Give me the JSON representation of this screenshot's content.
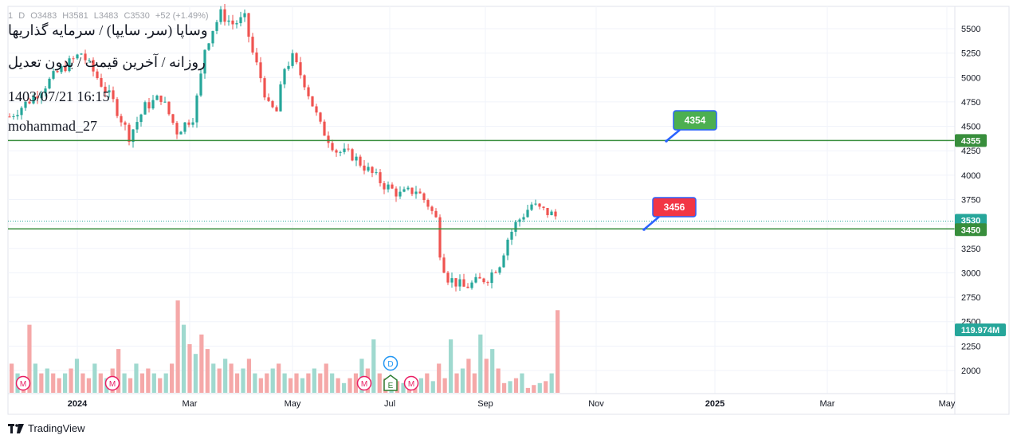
{
  "header": {
    "ohlc_labels": [
      "1",
      "D",
      "O3483",
      "H3581",
      "L3483",
      "C3530",
      "+52 (+1.49%)"
    ],
    "title": "وساپا (سر. سایپا) / سرمایه گذاریها",
    "subtitle": "روزانه / آخرین قیمت / بدون تعدیل",
    "datetime": "1403/07/21 16:15",
    "author": "mohammad_27"
  },
  "footer": {
    "brand": "TradingView"
  },
  "colors": {
    "up": "#26a69a",
    "down": "#ef5350",
    "vol_up": "#9fd9cf",
    "vol_down": "#f5a8a8",
    "line": "#388e3c",
    "label_green": "#4caf50",
    "label_red": "#f23645",
    "axis_text": "#131722",
    "grid": "#f0f3fa"
  },
  "chart_data": {
    "type": "candlestick",
    "x_ticks": [
      "2024",
      "Mar",
      "May",
      "Jul",
      "Sep",
      "Nov",
      "2025",
      "Mar",
      "May"
    ],
    "y_ticks": [
      2000,
      2250,
      2500,
      2750,
      3000,
      3250,
      3500,
      3750,
      4000,
      4250,
      4500,
      4750,
      5000,
      5250,
      5500
    ],
    "ylim": [
      1780,
      5720
    ],
    "price_badges": [
      {
        "value": "4355",
        "kind": "line"
      },
      {
        "value": "3530",
        "kind": "last"
      },
      {
        "value": "3450",
        "kind": "line"
      },
      {
        "value": "119.974M",
        "kind": "volume"
      }
    ],
    "horizontal_lines": [
      4355,
      3450
    ],
    "callouts": [
      {
        "label": "4354",
        "color": "green",
        "anchor_price": 4354
      },
      {
        "label": "3456",
        "color": "red",
        "anchor_price": 3456
      }
    ],
    "event_markers": [
      {
        "label": "M",
        "type": "dividend"
      },
      {
        "label": "M",
        "type": "dividend"
      },
      {
        "label": "M",
        "type": "dividend"
      },
      {
        "label": "E",
        "type": "earnings"
      },
      {
        "label": "D",
        "type": "split"
      },
      {
        "label": "M",
        "type": "dividend"
      }
    ],
    "series_points": [
      [
        0,
        4600
      ],
      [
        30,
        4800
      ],
      [
        60,
        5050
      ],
      [
        90,
        5250
      ],
      [
        110,
        5000
      ],
      [
        130,
        4750
      ],
      [
        150,
        4400
      ],
      [
        170,
        4700
      ],
      [
        190,
        4800
      ],
      [
        210,
        4450
      ],
      [
        230,
        4600
      ],
      [
        238,
        4900
      ],
      [
        245,
        5300
      ],
      [
        255,
        5500
      ],
      [
        265,
        5650
      ],
      [
        280,
        5550
      ],
      [
        295,
        5600
      ],
      [
        305,
        5250
      ],
      [
        315,
        5000
      ],
      [
        325,
        4700
      ],
      [
        335,
        4650
      ],
      [
        345,
        5100
      ],
      [
        355,
        5200
      ],
      [
        370,
        4950
      ],
      [
        390,
        4500
      ],
      [
        410,
        4250
      ],
      [
        430,
        4200
      ],
      [
        450,
        4050
      ],
      [
        470,
        3900
      ],
      [
        490,
        3800
      ],
      [
        510,
        3850
      ],
      [
        525,
        3700
      ],
      [
        535,
        3550
      ],
      [
        541,
        3150
      ],
      [
        550,
        2950
      ],
      [
        570,
        2850
      ],
      [
        590,
        2920
      ],
      [
        600,
        2950
      ],
      [
        615,
        3100
      ],
      [
        625,
        3350
      ],
      [
        635,
        3500
      ],
      [
        645,
        3600
      ],
      [
        655,
        3700
      ],
      [
        665,
        3650
      ],
      [
        680,
        3600
      ],
      [
        697,
        3530
      ]
    ],
    "volume_ratios": [
      0.3,
      0.2,
      0.15,
      0.7,
      0.3,
      0.2,
      0.25,
      0.2,
      0.15,
      0.2,
      0.25,
      0.35,
      0.2,
      0.15,
      0.3,
      0.2,
      0.15,
      0.25,
      0.45,
      0.2,
      0.15,
      0.3,
      0.2,
      0.25,
      0.2,
      0.15,
      0.2,
      0.3,
      0.95,
      0.7,
      0.5,
      0.4,
      0.6,
      0.45,
      0.3,
      0.25,
      0.35,
      0.3,
      0.2,
      0.25,
      0.35,
      0.2,
      0.15,
      0.2,
      0.25,
      0.3,
      0.2,
      0.15,
      0.2,
      0.15,
      0.2,
      0.25,
      0.2,
      0.3,
      0.2,
      0.15,
      0.1,
      0.15,
      0.2,
      0.35,
      0.25,
      0.55,
      0.2,
      0.15,
      0.1,
      0.12,
      0.1,
      0.08,
      0.1,
      0.15,
      0.2,
      0.12,
      0.3,
      0.15,
      0.55,
      0.2,
      0.25,
      0.35,
      0.2,
      0.6,
      0.35,
      0.45,
      0.25,
      0.1,
      0.12,
      0.15,
      0.2,
      0.05,
      0.08,
      0.1,
      0.12,
      0.2,
      0.85
    ],
    "grid": true,
    "legend": "none"
  }
}
